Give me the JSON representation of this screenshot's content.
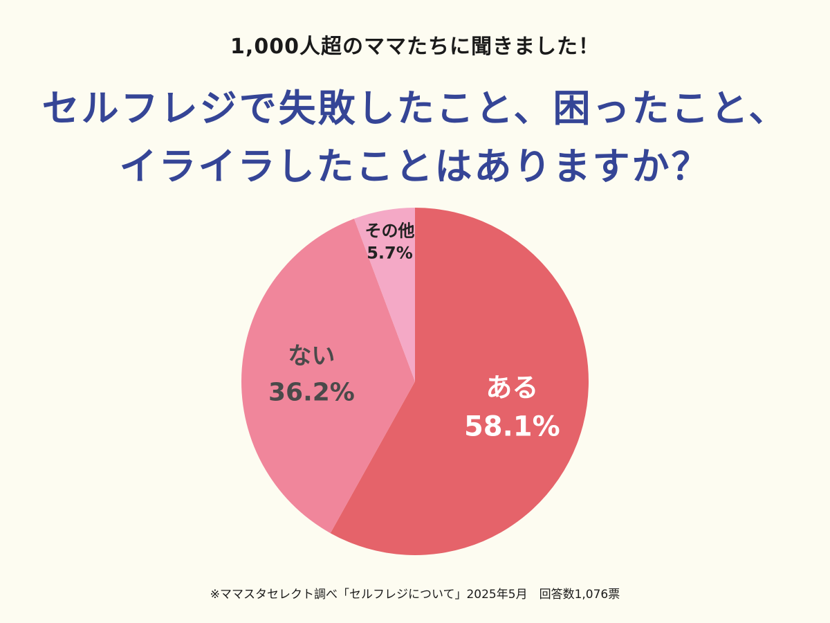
{
  "header": {
    "subtitle": "1,000人超のママたちに聞きました！",
    "title_line1": "セルフレジで失敗したこと、困ったこと、",
    "title_line2": "イライラしたことはありますか？"
  },
  "chart_data": {
    "type": "pie",
    "title": "セルフレジで失敗したこと、困ったこと、イライラしたことはありますか？",
    "categories": [
      "ある",
      "ない",
      "その他"
    ],
    "values": [
      58.1,
      36.2,
      5.7
    ],
    "labels": [
      "58.1%",
      "36.2%",
      "5.7%"
    ],
    "colors": [
      "#e5636a",
      "#f0869b",
      "#f4a9c6"
    ],
    "label_colors": [
      "#ffffff",
      "#4a4a4a",
      "#222222"
    ],
    "start_angle": "12 o'clock",
    "direction": "clockwise"
  },
  "footnote": "※ママスタセレクト調べ「セルフレジについて」2025年5月　回答数1,076票"
}
